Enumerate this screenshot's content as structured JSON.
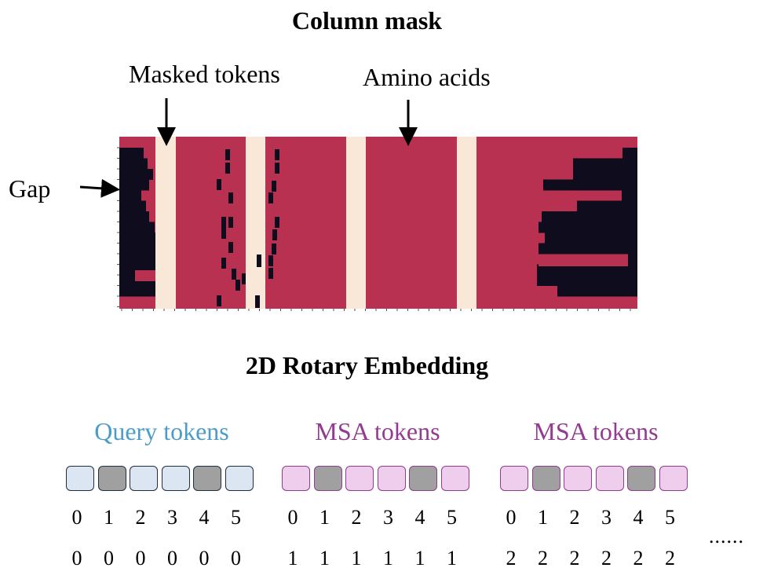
{
  "column_mask": {
    "title": "Column mask",
    "labels": {
      "masked_tokens": "Masked tokens",
      "amino_acids": "Amino acids",
      "gap": "Gap"
    },
    "colors": {
      "amino_acid": "#b83150",
      "gap": "#0f0c1e",
      "masked": "#f9e8d8"
    }
  },
  "rotary": {
    "title": "2D Rotary Embedding",
    "groups": [
      {
        "label": "Query tokens",
        "label_color": "#4a9cc9",
        "token_fill": "#dce6f2",
        "token_border": "#1f2f40",
        "masked_fill": "#a0a0a0",
        "masked": [
          false,
          true,
          false,
          false,
          true,
          false
        ],
        "positions": [
          "0",
          "1",
          "2",
          "3",
          "4",
          "5"
        ],
        "rows": [
          "0",
          "0",
          "0",
          "0",
          "0",
          "0"
        ]
      },
      {
        "label": "MSA tokens",
        "label_color": "#933a91",
        "token_fill": "#efcdec",
        "token_border": "#933a91",
        "masked_fill": "#a0a0a0",
        "masked": [
          false,
          true,
          false,
          false,
          true,
          false
        ],
        "positions": [
          "0",
          "1",
          "2",
          "3",
          "4",
          "5"
        ],
        "rows": [
          "1",
          "1",
          "1",
          "1",
          "1",
          "1"
        ]
      },
      {
        "label": "MSA tokens",
        "label_color": "#933a91",
        "token_fill": "#efcdec",
        "token_border": "#933a91",
        "masked_fill": "#a0a0a0",
        "masked": [
          false,
          true,
          false,
          false,
          true,
          false
        ],
        "positions": [
          "0",
          "1",
          "2",
          "3",
          "4",
          "5"
        ],
        "rows": [
          "2",
          "2",
          "2",
          "2",
          "2",
          "2"
        ]
      }
    ],
    "ellipsis": "......"
  }
}
